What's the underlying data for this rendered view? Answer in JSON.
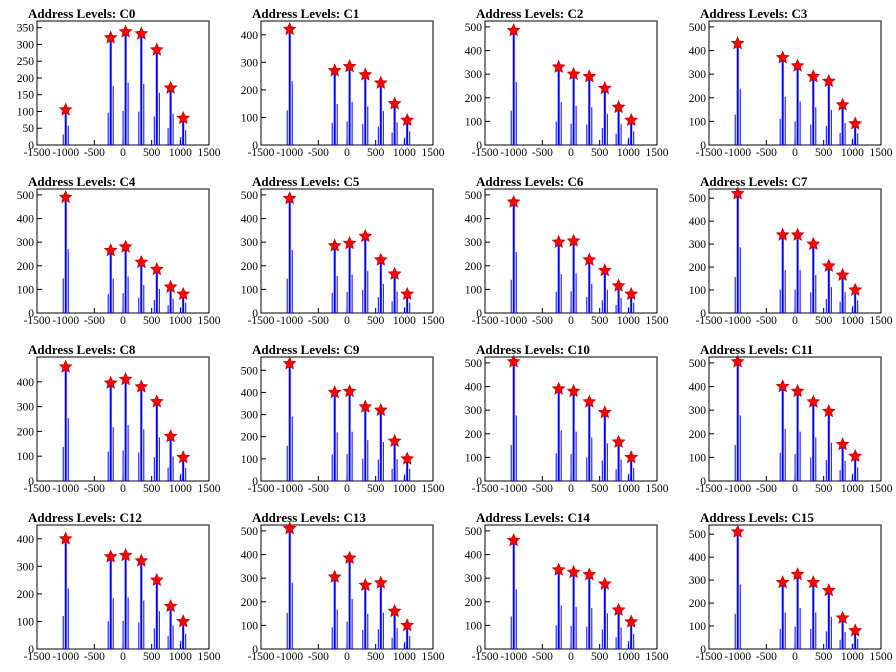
{
  "figure": {
    "background": "#ffffff",
    "histogram_color": "#0000ff",
    "marker_color": "#ff0000"
  },
  "chart_data": [
    {
      "type": "bar",
      "title": "Address Levels: C0",
      "xlim": [
        -1500,
        1500
      ],
      "ylim": [
        0,
        370
      ],
      "yticks": [
        0,
        50,
        100,
        150,
        200,
        250,
        300,
        350
      ],
      "xticks": [
        -1500,
        -1000,
        -500,
        0,
        500,
        1000,
        1500
      ],
      "peaks": [
        {
          "x": -1000,
          "y": 105
        },
        {
          "x": -215,
          "y": 320
        },
        {
          "x": 45,
          "y": 338
        },
        {
          "x": 320,
          "y": 332
        },
        {
          "x": 590,
          "y": 284
        },
        {
          "x": 830,
          "y": 170
        },
        {
          "x": 1050,
          "y": 80
        }
      ]
    },
    {
      "type": "bar",
      "title": "Address Levels: C1",
      "xlim": [
        -1500,
        1500
      ],
      "ylim": [
        0,
        450
      ],
      "yticks": [
        0,
        100,
        200,
        300,
        400
      ],
      "xticks": [
        -1500,
        -1000,
        -500,
        0,
        500,
        1000,
        1500
      ],
      "peaks": [
        {
          "x": -1000,
          "y": 420
        },
        {
          "x": -215,
          "y": 270
        },
        {
          "x": 45,
          "y": 285
        },
        {
          "x": 320,
          "y": 255
        },
        {
          "x": 590,
          "y": 225
        },
        {
          "x": 830,
          "y": 150
        },
        {
          "x": 1050,
          "y": 90
        }
      ]
    },
    {
      "type": "bar",
      "title": "Address Levels: C2",
      "xlim": [
        -1500,
        1500
      ],
      "ylim": [
        0,
        525
      ],
      "yticks": [
        0,
        100,
        200,
        300,
        400,
        500
      ],
      "xticks": [
        -1500,
        -1000,
        -500,
        0,
        500,
        1000,
        1500
      ],
      "peaks": [
        {
          "x": -1000,
          "y": 485
        },
        {
          "x": -215,
          "y": 330
        },
        {
          "x": 45,
          "y": 300
        },
        {
          "x": 320,
          "y": 290
        },
        {
          "x": 590,
          "y": 240
        },
        {
          "x": 830,
          "y": 160
        },
        {
          "x": 1050,
          "y": 105
        }
      ]
    },
    {
      "type": "bar",
      "title": "Address Levels: C3",
      "xlim": [
        -1500,
        1500
      ],
      "ylim": [
        0,
        525
      ],
      "yticks": [
        0,
        100,
        200,
        300,
        400,
        500
      ],
      "xticks": [
        -1500,
        -1000,
        -500,
        0,
        500,
        1000,
        1500
      ],
      "peaks": [
        {
          "x": -1000,
          "y": 430
        },
        {
          "x": -215,
          "y": 370
        },
        {
          "x": 45,
          "y": 335
        },
        {
          "x": 320,
          "y": 290
        },
        {
          "x": 590,
          "y": 270
        },
        {
          "x": 830,
          "y": 170
        },
        {
          "x": 1050,
          "y": 90
        }
      ]
    },
    {
      "type": "bar",
      "title": "Address Levels: C4",
      "xlim": [
        -1500,
        1500
      ],
      "ylim": [
        0,
        525
      ],
      "yticks": [
        0,
        100,
        200,
        300,
        400,
        500
      ],
      "xticks": [
        -1500,
        -1000,
        -500,
        0,
        500,
        1000,
        1500
      ],
      "peaks": [
        {
          "x": -1000,
          "y": 490
        },
        {
          "x": -215,
          "y": 265
        },
        {
          "x": 45,
          "y": 280
        },
        {
          "x": 320,
          "y": 215
        },
        {
          "x": 590,
          "y": 185
        },
        {
          "x": 830,
          "y": 110
        },
        {
          "x": 1050,
          "y": 80
        }
      ]
    },
    {
      "type": "bar",
      "title": "Address Levels: C5",
      "xlim": [
        -1500,
        1500
      ],
      "ylim": [
        0,
        525
      ],
      "yticks": [
        0,
        100,
        200,
        300,
        400,
        500
      ],
      "xticks": [
        -1500,
        -1000,
        -500,
        0,
        500,
        1000,
        1500
      ],
      "peaks": [
        {
          "x": -1000,
          "y": 485
        },
        {
          "x": -215,
          "y": 285
        },
        {
          "x": 45,
          "y": 295
        },
        {
          "x": 320,
          "y": 325
        },
        {
          "x": 590,
          "y": 225
        },
        {
          "x": 830,
          "y": 165
        },
        {
          "x": 1050,
          "y": 80
        }
      ]
    },
    {
      "type": "bar",
      "title": "Address Levels: C6",
      "xlim": [
        -1500,
        1500
      ],
      "ylim": [
        0,
        525
      ],
      "yticks": [
        0,
        100,
        200,
        300,
        400,
        500
      ],
      "xticks": [
        -1500,
        -1000,
        -500,
        0,
        500,
        1000,
        1500
      ],
      "peaks": [
        {
          "x": -1000,
          "y": 470
        },
        {
          "x": -215,
          "y": 300
        },
        {
          "x": 45,
          "y": 305
        },
        {
          "x": 320,
          "y": 225
        },
        {
          "x": 590,
          "y": 180
        },
        {
          "x": 830,
          "y": 115
        },
        {
          "x": 1050,
          "y": 80
        }
      ]
    },
    {
      "type": "bar",
      "title": "Address Levels: C7",
      "xlim": [
        -1500,
        1500
      ],
      "ylim": [
        0,
        540
      ],
      "yticks": [
        0,
        100,
        200,
        300,
        400,
        500
      ],
      "xticks": [
        -1500,
        -1000,
        -500,
        0,
        500,
        1000,
        1500
      ],
      "peaks": [
        {
          "x": -1000,
          "y": 520
        },
        {
          "x": -215,
          "y": 340
        },
        {
          "x": 45,
          "y": 340
        },
        {
          "x": 320,
          "y": 300
        },
        {
          "x": 590,
          "y": 205
        },
        {
          "x": 830,
          "y": 165
        },
        {
          "x": 1050,
          "y": 100
        }
      ]
    },
    {
      "type": "bar",
      "title": "Address Levels: C8",
      "xlim": [
        -1500,
        1500
      ],
      "ylim": [
        0,
        500
      ],
      "yticks": [
        0,
        100,
        200,
        300,
        400
      ],
      "xticks": [
        -1500,
        -1000,
        -500,
        0,
        500,
        1000,
        1500
      ],
      "peaks": [
        {
          "x": -1000,
          "y": 460
        },
        {
          "x": -215,
          "y": 395
        },
        {
          "x": 45,
          "y": 410
        },
        {
          "x": 320,
          "y": 380
        },
        {
          "x": 590,
          "y": 320
        },
        {
          "x": 830,
          "y": 180
        },
        {
          "x": 1050,
          "y": 95
        }
      ]
    },
    {
      "type": "bar",
      "title": "Address Levels: C9",
      "xlim": [
        -1500,
        1500
      ],
      "ylim": [
        0,
        560
      ],
      "yticks": [
        0,
        100,
        200,
        300,
        400,
        500
      ],
      "xticks": [
        -1500,
        -1000,
        -500,
        0,
        500,
        1000,
        1500
      ],
      "peaks": [
        {
          "x": -1000,
          "y": 530
        },
        {
          "x": -215,
          "y": 400
        },
        {
          "x": 45,
          "y": 405
        },
        {
          "x": 320,
          "y": 335
        },
        {
          "x": 590,
          "y": 320
        },
        {
          "x": 830,
          "y": 180
        },
        {
          "x": 1050,
          "y": 100
        }
      ]
    },
    {
      "type": "bar",
      "title": "Address Levels: C10",
      "xlim": [
        -1500,
        1500
      ],
      "ylim": [
        0,
        525
      ],
      "yticks": [
        0,
        100,
        200,
        300,
        400,
        500
      ],
      "xticks": [
        -1500,
        -1000,
        -500,
        0,
        500,
        1000,
        1500
      ],
      "peaks": [
        {
          "x": -1000,
          "y": 505
        },
        {
          "x": -215,
          "y": 390
        },
        {
          "x": 45,
          "y": 380
        },
        {
          "x": 320,
          "y": 335
        },
        {
          "x": 590,
          "y": 290
        },
        {
          "x": 830,
          "y": 165
        },
        {
          "x": 1050,
          "y": 100
        }
      ]
    },
    {
      "type": "bar",
      "title": "Address Levels: C11",
      "xlim": [
        -1500,
        1500
      ],
      "ylim": [
        0,
        525
      ],
      "yticks": [
        0,
        100,
        200,
        300,
        400,
        500
      ],
      "xticks": [
        -1500,
        -1000,
        -500,
        0,
        500,
        1000,
        1500
      ],
      "peaks": [
        {
          "x": -1000,
          "y": 505
        },
        {
          "x": -215,
          "y": 400
        },
        {
          "x": 45,
          "y": 380
        },
        {
          "x": 320,
          "y": 335
        },
        {
          "x": 590,
          "y": 295
        },
        {
          "x": 830,
          "y": 155
        },
        {
          "x": 1050,
          "y": 105
        }
      ]
    },
    {
      "type": "bar",
      "title": "Address Levels: C12",
      "xlim": [
        -1500,
        1500
      ],
      "ylim": [
        0,
        450
      ],
      "yticks": [
        0,
        100,
        200,
        300,
        400
      ],
      "xticks": [
        -1500,
        -1000,
        -500,
        0,
        500,
        1000,
        1500
      ],
      "peaks": [
        {
          "x": -1000,
          "y": 400
        },
        {
          "x": -215,
          "y": 335
        },
        {
          "x": 45,
          "y": 340
        },
        {
          "x": 320,
          "y": 320
        },
        {
          "x": 590,
          "y": 250
        },
        {
          "x": 830,
          "y": 155
        },
        {
          "x": 1050,
          "y": 100
        }
      ]
    },
    {
      "type": "bar",
      "title": "Address Levels: C13",
      "xlim": [
        -1500,
        1500
      ],
      "ylim": [
        0,
        525
      ],
      "yticks": [
        0,
        100,
        200,
        300,
        400,
        500
      ],
      "xticks": [
        -1500,
        -1000,
        -500,
        0,
        500,
        1000,
        1500
      ],
      "peaks": [
        {
          "x": -1000,
          "y": 510
        },
        {
          "x": -215,
          "y": 305
        },
        {
          "x": 45,
          "y": 385
        },
        {
          "x": 320,
          "y": 270
        },
        {
          "x": 590,
          "y": 280
        },
        {
          "x": 830,
          "y": 160
        },
        {
          "x": 1050,
          "y": 100
        }
      ]
    },
    {
      "type": "bar",
      "title": "Address Levels: C14",
      "xlim": [
        -1500,
        1500
      ],
      "ylim": [
        0,
        525
      ],
      "yticks": [
        0,
        100,
        200,
        300,
        400,
        500
      ],
      "xticks": [
        -1500,
        -1000,
        -500,
        0,
        500,
        1000,
        1500
      ],
      "peaks": [
        {
          "x": -1000,
          "y": 460
        },
        {
          "x": -215,
          "y": 335
        },
        {
          "x": 45,
          "y": 325
        },
        {
          "x": 320,
          "y": 315
        },
        {
          "x": 590,
          "y": 275
        },
        {
          "x": 830,
          "y": 165
        },
        {
          "x": 1050,
          "y": 115
        }
      ]
    },
    {
      "type": "bar",
      "title": "Address Levels: C15",
      "xlim": [
        -1500,
        1500
      ],
      "ylim": [
        0,
        540
      ],
      "yticks": [
        0,
        100,
        200,
        300,
        400,
        500
      ],
      "xticks": [
        -1500,
        -1000,
        -500,
        0,
        500,
        1000,
        1500
      ],
      "peaks": [
        {
          "x": -1000,
          "y": 510
        },
        {
          "x": -215,
          "y": 290
        },
        {
          "x": 45,
          "y": 325
        },
        {
          "x": 320,
          "y": 290
        },
        {
          "x": 590,
          "y": 255
        },
        {
          "x": 830,
          "y": 135
        },
        {
          "x": 1050,
          "y": 80
        }
      ]
    }
  ]
}
